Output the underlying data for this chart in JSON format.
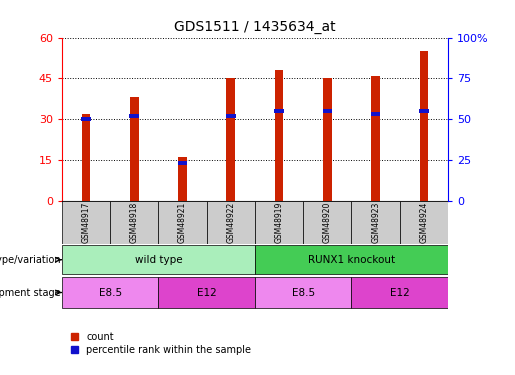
{
  "title": "GDS1511 / 1435634_at",
  "samples": [
    "GSM48917",
    "GSM48918",
    "GSM48921",
    "GSM48922",
    "GSM48919",
    "GSM48920",
    "GSM48923",
    "GSM48924"
  ],
  "counts": [
    32,
    38,
    16,
    45,
    48,
    45,
    46,
    55
  ],
  "percentile_values": [
    30,
    31,
    14,
    31,
    33,
    33,
    32,
    33
  ],
  "ylim_left": [
    0,
    60
  ],
  "ylim_right": [
    0,
    100
  ],
  "yticks_left": [
    0,
    15,
    30,
    45,
    60
  ],
  "yticks_right": [
    0,
    25,
    50,
    75,
    100
  ],
  "ytick_labels_right": [
    "0",
    "25",
    "50",
    "75",
    "100%"
  ],
  "bar_color": "#cc2200",
  "percentile_color": "#1111cc",
  "plot_bg": "#ffffff",
  "genotype_row": [
    {
      "label": "wild type",
      "start": 0,
      "end": 4,
      "color": "#aaeebb"
    },
    {
      "label": "RUNX1 knockout",
      "start": 4,
      "end": 8,
      "color": "#44cc55"
    }
  ],
  "stage_row": [
    {
      "label": "E8.5",
      "start": 0,
      "end": 2,
      "color": "#ee88ee"
    },
    {
      "label": "E12",
      "start": 2,
      "end": 4,
      "color": "#dd44cc"
    },
    {
      "label": "E8.5",
      "start": 4,
      "end": 6,
      "color": "#ee88ee"
    },
    {
      "label": "E12",
      "start": 6,
      "end": 8,
      "color": "#dd44cc"
    }
  ],
  "genotype_label": "genotype/variation",
  "stage_label": "development stage",
  "legend_count": "count",
  "legend_percentile": "percentile rank within the sample",
  "sample_bg": "#cccccc"
}
